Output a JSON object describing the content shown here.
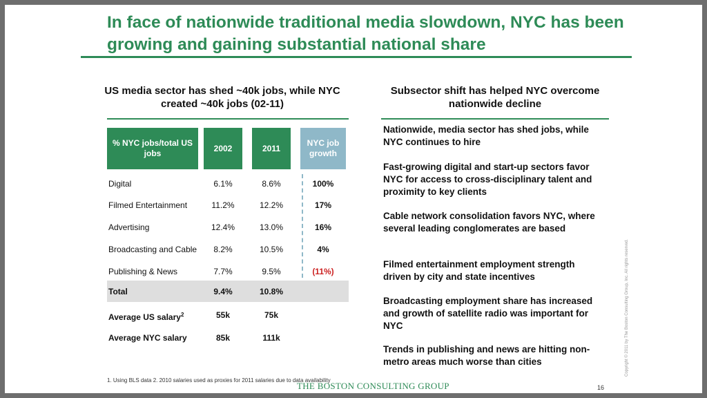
{
  "title": "In face of nationwide traditional media slowdown, NYC has been growing and gaining substantial national share",
  "left": {
    "subheading": "US media sector has shed ~40k jobs, while NYC created ~40k jobs (02-11)",
    "table": {
      "headers": [
        "% NYC jobs/total US jobs",
        "2002",
        "2011",
        "NYC job growth"
      ],
      "rows": [
        {
          "label": "Digital",
          "y2002": "6.1%",
          "y2011": "8.6%",
          "growth": "100%"
        },
        {
          "label": "Filmed Entertainment",
          "y2002": "11.2%",
          "y2011": "12.2%",
          "growth": "17%"
        },
        {
          "label": "Advertising",
          "y2002": "12.4%",
          "y2011": "13.0%",
          "growth": "16%"
        },
        {
          "label": "Broadcasting and Cable",
          "y2002": "8.2%",
          "y2011": "10.5%",
          "growth": "4%"
        },
        {
          "label": "Publishing & News",
          "y2002": "7.7%",
          "y2011": "9.5%",
          "growth": "(11%)"
        }
      ],
      "total": {
        "label": "Total",
        "y2002": "9.4%",
        "y2011": "10.8%"
      },
      "salary_us": {
        "label": "Average US salary",
        "sup": "2",
        "y2002": "55k",
        "y2011": "75k"
      },
      "salary_nyc": {
        "label": "Average NYC salary",
        "y2002": "85k",
        "y2011": "111k"
      }
    }
  },
  "right": {
    "subheading": "Subsector shift has helped NYC overcome nationwide decline",
    "bullets": [
      "Nationwide, media sector has shed jobs, while NYC continues to hire",
      "Fast-growing digital and start-up sectors favor NYC for access to cross-disciplinary talent and proximity to key clients",
      "Cable network consolidation favors NYC, where several leading conglomerates are based",
      "Filmed entertainment employment strength driven by city and state incentives",
      "Broadcasting employment share has increased and growth of satellite radio was important for NYC",
      "Trends in publishing and news are hitting non-metro areas much worse than cities"
    ]
  },
  "footer": {
    "footnote": "1. Using BLS data  2. 2010 salaries used as proxies for 2011 salaries due to data availability",
    "logo": "THE BOSTON CONSULTING GROUP",
    "page": "16",
    "copyright": "Copyright © 2011 by The Boston Consulting Group, Inc. All rights reserved."
  },
  "colors": {
    "accent": "#2e8b57",
    "growth_header": "#8fb8c8",
    "negative": "#cc2222",
    "total_band": "#dedede"
  }
}
